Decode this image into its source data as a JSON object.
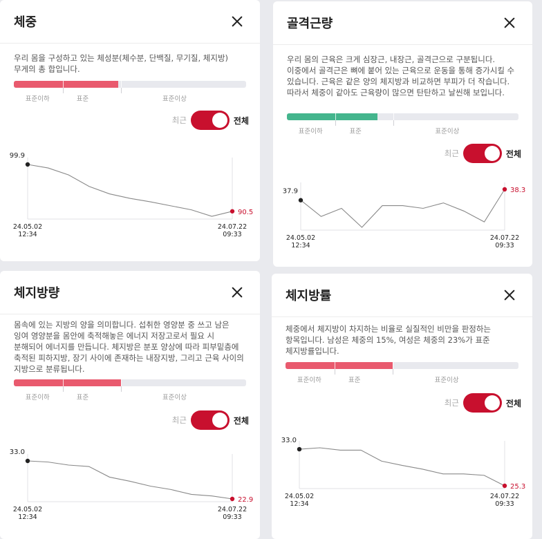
{
  "toggle": {
    "recent_label": "최근",
    "all_label": "전체"
  },
  "cards": [
    {
      "title": "체중",
      "description": "우리 몸을 구성하고 있는 체성분(체수분, 단백질, 무기질, 체지방) 무게의 총 합입니다.",
      "gauge": {
        "labels": [
          "표준이하",
          "표준",
          "표준이상"
        ],
        "color": "#e95a6e",
        "fill_fraction": 0.45
      },
      "chart_data": {
        "type": "line",
        "x": [
          "24.05.02 12:34",
          "",
          "",
          "",
          "",
          "",
          "",
          "",
          "",
          "",
          "24.07.22 09:33"
        ],
        "values": [
          99.9,
          99.2,
          97.8,
          95.5,
          94.0,
          93.1,
          92.4,
          91.6,
          90.8,
          89.5,
          90.5
        ],
        "first": {
          "value_label": "99.9",
          "date": "24.05.02",
          "time": "12:34"
        },
        "last": {
          "value_label": "90.5",
          "date": "24.07.22",
          "time": "09:33"
        },
        "ylim": [
          89.5,
          99.9
        ]
      }
    },
    {
      "title": "골격근량",
      "description": "우리 몸의 근육은 크게 심장근, 내장근, 골격근으로 구분됩니다. 이중에서 골격근은 뼈에 붙어 있는 근육으로 운동을 통해 증가시킬 수 있습니다. 근육은 같은 양의 체지방과 비교하면 부피가 더 작습니다. 따라서 체중이 같아도 근육량이 많으면 탄탄하고 날씬해 보입니다.",
      "gauge": {
        "labels": [
          "표준이하",
          "표준",
          "표준이상"
        ],
        "color": "#44b58d",
        "fill_fraction": 0.39
      },
      "chart_data": {
        "type": "line",
        "x": [
          "24.05.02 12:34",
          "",
          "",
          "",
          "",
          "",
          "",
          "",
          "",
          "",
          "24.07.22 09:33"
        ],
        "values": [
          37.9,
          37.3,
          37.6,
          36.9,
          37.7,
          37.7,
          37.6,
          37.8,
          37.5,
          37.1,
          38.3
        ],
        "first": {
          "value_label": "37.9",
          "date": "24.05.02",
          "time": "12:34"
        },
        "last": {
          "value_label": "38.3",
          "date": "24.07.22",
          "time": "09:33"
        },
        "ylim": [
          36.9,
          38.3
        ]
      }
    },
    {
      "title": "체지방량",
      "description": "몸속에 있는 지방의 양을 의미합니다. 섭취한 영양분 중 쓰고 남은 잉여 영양분을 몸안에 축적해놓은 에너지 저장고로서 필요 시 분해되어 에너지를 만듭니다. 체지방은 분포 양상에 따라 피부밑층에 축적된 피하지방, 장기 사이에 존재하는 내장지방, 그리고 근육 사이의 지방으로 분류됩니다.",
      "gauge": {
        "labels": [
          "표준이하",
          "표준",
          "표준이상"
        ],
        "color": "#e95a6e",
        "fill_fraction": 0.46
      },
      "chart_data": {
        "type": "line",
        "x": [
          "24.05.02 12:34",
          "",
          "",
          "",
          "",
          "",
          "",
          "",
          "",
          "",
          "24.07.22 09:33"
        ],
        "values": [
          33.0,
          32.7,
          31.9,
          31.5,
          28.7,
          27.6,
          26.3,
          25.4,
          24.1,
          23.7,
          22.9
        ],
        "first": {
          "value_label": "33.0",
          "date": "24.05.02",
          "time": "12:34"
        },
        "last": {
          "value_label": "22.9",
          "date": "24.07.22",
          "time": "09:33"
        },
        "ylim": [
          22.9,
          33.0
        ]
      }
    },
    {
      "title": "체지방률",
      "description": "체중에서 체지방이 차지하는 비율로 실질적인 비만을 판정하는 항목입니다. 남성은 체중의 15%, 여성은 체중의 23%가 표준 체지방률입니다.",
      "gauge": {
        "labels": [
          "표준이하",
          "표준",
          "표준이상"
        ],
        "color": "#e95a6e",
        "fill_fraction": 0.46
      },
      "chart_data": {
        "type": "line",
        "x": [
          "24.05.02 12:34",
          "",
          "",
          "",
          "",
          "",
          "",
          "",
          "",
          "",
          "24.07.22 09:33"
        ],
        "values": [
          33.0,
          33.3,
          32.8,
          32.8,
          30.5,
          29.6,
          28.8,
          27.8,
          27.8,
          27.5,
          25.3
        ],
        "first": {
          "value_label": "33.0",
          "date": "24.05.02",
          "time": "12:34"
        },
        "last": {
          "value_label": "25.3",
          "date": "24.07.22",
          "time": "09:33"
        },
        "ylim": [
          25.3,
          33.3
        ]
      }
    }
  ]
}
